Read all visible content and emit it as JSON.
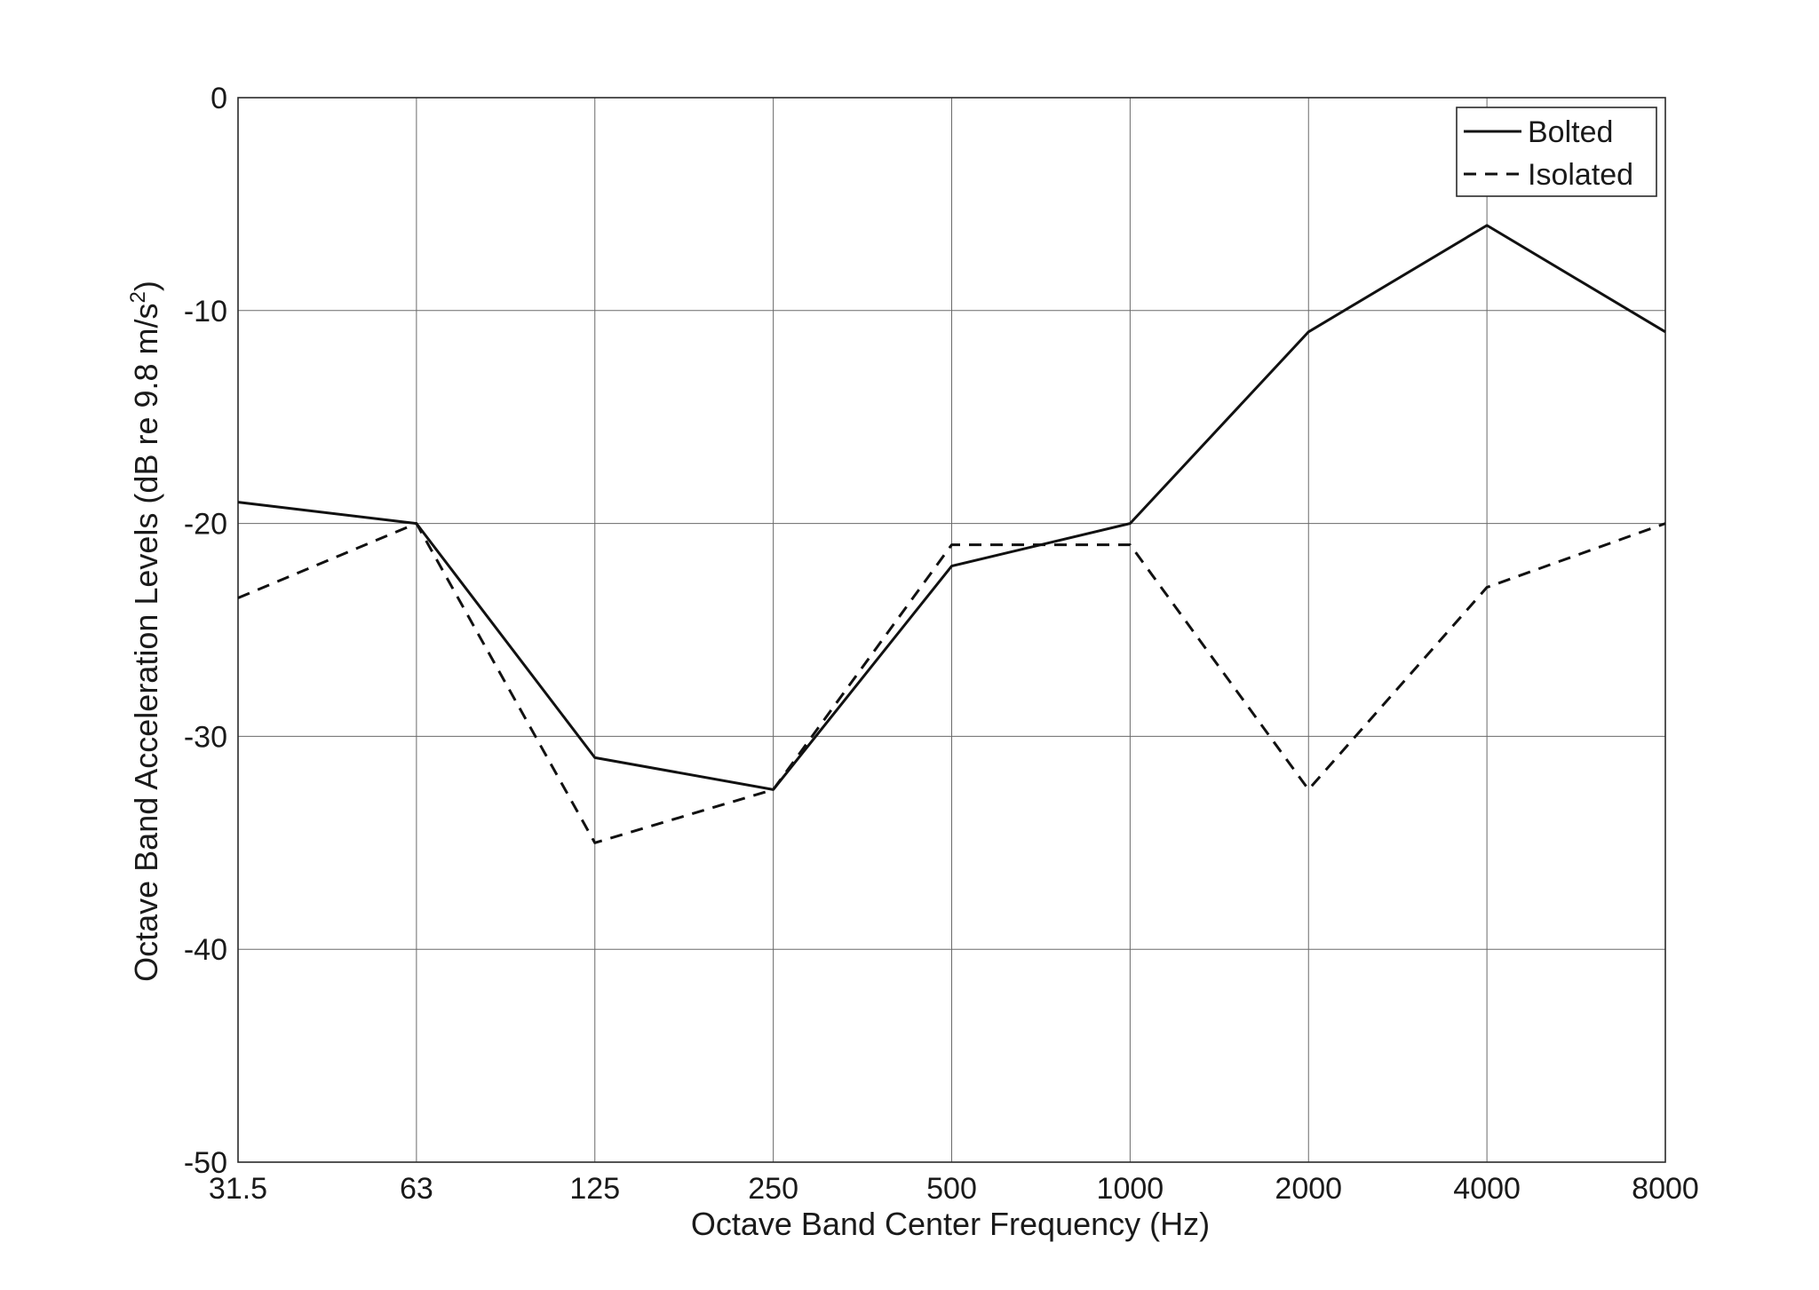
{
  "chart_data": {
    "type": "line",
    "title": "",
    "xlabel": "Octave Band Center Frequency (Hz)",
    "ylabel": {
      "main": "Octave Band Acceleration Levels (dB re 9.8 m/s",
      "superscript": "2",
      "close": ")"
    },
    "categories": [
      "31.5",
      "63",
      "125",
      "250",
      "500",
      "1000",
      "2000",
      "4000",
      "8000"
    ],
    "ylim": [
      -50,
      0
    ],
    "yticks": [
      0,
      -10,
      -20,
      -30,
      -40,
      -50
    ],
    "grid": true,
    "legend": "top-right",
    "series": [
      {
        "name": "Bolted",
        "style": "solid",
        "color": "#111111",
        "values": [
          -19,
          -20,
          -31,
          -32.5,
          -22,
          -20,
          -11,
          -6,
          -11
        ]
      },
      {
        "name": "Isolated",
        "style": "dashed",
        "color": "#111111",
        "values": [
          -23.5,
          -20,
          -35,
          -32.5,
          -21,
          -21,
          -32.5,
          -23,
          -20
        ]
      }
    ]
  }
}
